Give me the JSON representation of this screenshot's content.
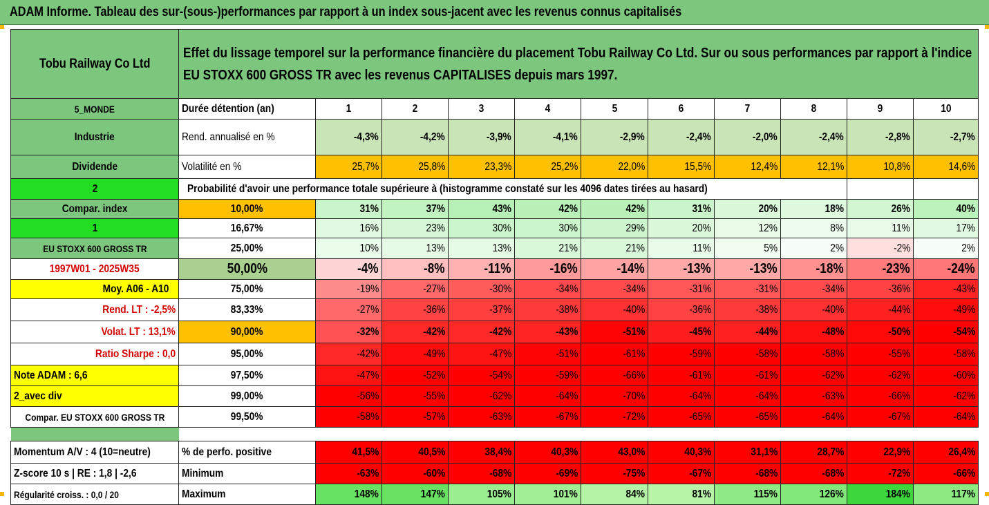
{
  "banner": "ADAM Informe. Tableau des sur-(sous-)performances par rapport à un index sous-jacent avec les revenus connus capitalisés",
  "company": "Tobu Railway Co Ltd",
  "description": "Effet du lissage temporel sur la performance financière du placement Tobu Railway Co Ltd. Sur ou sous performances par rapport à l'indice EU STOXX 600 GROSS TR avec les revenus CAPITALISES depuis mars 1997.",
  "side_labels": {
    "monde": "5_MONDE",
    "industrie": "Industrie",
    "dividende": "Dividende",
    "two": "2",
    "compar_index": "Compar. index",
    "one": "1",
    "eu_stoxx": "EU STOXX 600 GROSS TR",
    "period": "1997W01 - 2025W35",
    "moy": "Moy. A06 - A10",
    "rend_lt": "Rend. LT :   -2,5%",
    "volat_lt": "Volat. LT :   13,1%",
    "sharpe": "Ratio Sharpe :   0,0",
    "note": "Note ADAM : 6,6",
    "avec_div": "2_avec div",
    "compar_eu": "Compar. EU STOXX 600 GROSS TR",
    "momentum": "Momentum A/V : 4 (10=neutre)",
    "zscore": "Z-score 10 s  |  RE : 1,8  |  -2,6",
    "regularite": "Régularité croiss. : 0,0 / 20"
  },
  "row_labels": {
    "duree": "Durée détention (an)",
    "rend": "Rend. annualisé en %",
    "volat": "Volatilité en %",
    "proba": "Probabilité d'avoir une performance totale supérieure à (histogramme constaté sur les 4096 dates tirées au hasard)",
    "perfo_pos": "% de perfo. positive",
    "minimum": "Minimum",
    "maximum": "Maximum"
  },
  "years": [
    "1",
    "2",
    "3",
    "4",
    "5",
    "6",
    "7",
    "8",
    "9",
    "10"
  ],
  "rend": [
    "-4,3%",
    "-4,2%",
    "-3,9%",
    "-4,1%",
    "-2,9%",
    "-2,4%",
    "-2,0%",
    "-2,4%",
    "-2,8%",
    "-2,7%"
  ],
  "volat": [
    "25,7%",
    "25,8%",
    "23,3%",
    "25,2%",
    "22,0%",
    "15,5%",
    "12,4%",
    "12,1%",
    "10,8%",
    "14,6%"
  ],
  "proba_rows": [
    {
      "threshold": "10,00%",
      "values": [
        "31%",
        "37%",
        "43%",
        "42%",
        "42%",
        "31%",
        "20%",
        "18%",
        "26%",
        "40%"
      ]
    },
    {
      "threshold": "16,67%",
      "values": [
        "16%",
        "23%",
        "30%",
        "30%",
        "29%",
        "20%",
        "12%",
        "8%",
        "11%",
        "17%"
      ]
    },
    {
      "threshold": "25,00%",
      "values": [
        "10%",
        "13%",
        "13%",
        "21%",
        "21%",
        "11%",
        "5%",
        "2%",
        "-2%",
        "2%"
      ]
    },
    {
      "threshold": "50,00%",
      "values": [
        "-4%",
        "-8%",
        "-11%",
        "-16%",
        "-14%",
        "-13%",
        "-13%",
        "-18%",
        "-23%",
        "-24%"
      ]
    },
    {
      "threshold": "75,00%",
      "values": [
        "-19%",
        "-27%",
        "-30%",
        "-34%",
        "-34%",
        "-31%",
        "-31%",
        "-34%",
        "-36%",
        "-43%"
      ]
    },
    {
      "threshold": "83,33%",
      "values": [
        "-27%",
        "-36%",
        "-37%",
        "-38%",
        "-40%",
        "-36%",
        "-38%",
        "-40%",
        "-44%",
        "-49%"
      ]
    },
    {
      "threshold": "90,00%",
      "values": [
        "-32%",
        "-42%",
        "-42%",
        "-43%",
        "-51%",
        "-45%",
        "-44%",
        "-48%",
        "-50%",
        "-54%"
      ]
    },
    {
      "threshold": "95,00%",
      "values": [
        "-42%",
        "-49%",
        "-47%",
        "-51%",
        "-61%",
        "-59%",
        "-58%",
        "-58%",
        "-55%",
        "-58%"
      ]
    },
    {
      "threshold": "97,50%",
      "values": [
        "-47%",
        "-52%",
        "-54%",
        "-59%",
        "-66%",
        "-61%",
        "-61%",
        "-62%",
        "-62%",
        "-60%"
      ]
    },
    {
      "threshold": "99,00%",
      "values": [
        "-56%",
        "-55%",
        "-62%",
        "-64%",
        "-70%",
        "-64%",
        "-64%",
        "-63%",
        "-66%",
        "-62%"
      ]
    },
    {
      "threshold": "99,50%",
      "values": [
        "-58%",
        "-57%",
        "-63%",
        "-67%",
        "-72%",
        "-65%",
        "-65%",
        "-64%",
        "-67%",
        "-64%"
      ]
    }
  ],
  "perfo_pos": [
    "41,5%",
    "40,5%",
    "38,4%",
    "40,3%",
    "43,0%",
    "40,3%",
    "31,1%",
    "28,7%",
    "22,9%",
    "26,4%"
  ],
  "minimum": [
    "-63%",
    "-60%",
    "-68%",
    "-69%",
    "-75%",
    "-67%",
    "-68%",
    "-68%",
    "-72%",
    "-66%"
  ],
  "maximum": [
    "148%",
    "147%",
    "105%",
    "101%",
    "84%",
    "81%",
    "115%",
    "126%",
    "184%",
    "117%"
  ],
  "colors": {
    "header_green": "#7cc67e",
    "bright_green": "#22dd22",
    "yellow": "#ffff00",
    "orange": "#ffc000",
    "red": "#ff0000",
    "label_red": "#d40000"
  }
}
